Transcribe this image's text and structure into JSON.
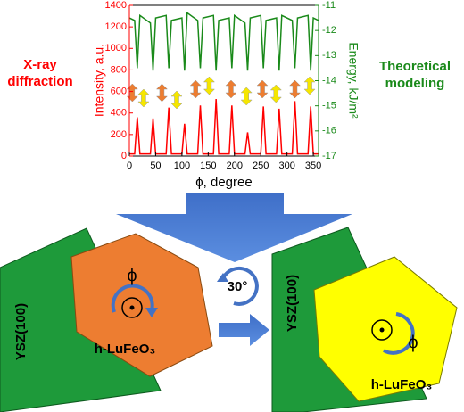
{
  "chart_data": {
    "type": "line",
    "x_label": "ϕ, degree",
    "y_label": "Intensity, a.u.",
    "y2_label": "Energy, kJ/m²",
    "left_annotation": [
      "X-ray",
      "diffraction"
    ],
    "right_annotation": [
      "Theoretical",
      "modeling"
    ],
    "x": [
      0,
      10,
      15,
      20,
      40,
      45,
      50,
      70,
      75,
      80,
      100,
      105,
      110,
      130,
      135,
      140,
      160,
      165,
      170,
      190,
      195,
      200,
      220,
      225,
      230,
      250,
      255,
      260,
      280,
      285,
      290,
      310,
      315,
      320,
      340,
      345,
      350,
      360
    ],
    "xlim": [
      0,
      360
    ],
    "xticks": [
      0,
      50,
      100,
      150,
      200,
      250,
      300,
      350
    ],
    "ylim": [
      0,
      1400
    ],
    "yticks": [
      0,
      200,
      400,
      600,
      800,
      1000,
      1200,
      1400
    ],
    "y2lim": [
      -17,
      -11
    ],
    "y2ticks": [
      -17,
      -16,
      -15,
      -14,
      -13,
      -12,
      -11
    ],
    "series": [
      {
        "color": "#ff0000",
        "values": [
          20,
          20,
          360,
          20,
          20,
          350,
          20,
          20,
          450,
          20,
          20,
          300,
          20,
          20,
          470,
          20,
          20,
          530,
          20,
          20,
          470,
          20,
          20,
          220,
          20,
          20,
          460,
          20,
          20,
          440,
          20,
          20,
          510,
          20,
          20,
          460,
          20,
          20
        ]
      },
      {
        "color": "#1a8a1a",
        "axis": "y2",
        "values": [
          -11.5,
          -11.6,
          -13.5,
          -11.4,
          -11.7,
          -13.6,
          -11.5,
          -11.4,
          -13.5,
          -11.6,
          -11.5,
          -13.6,
          -11.3,
          -11.6,
          -13.5,
          -11.5,
          -11.4,
          -13.6,
          -11.6,
          -11.5,
          -13.5,
          -11.4,
          -11.7,
          -13.6,
          -11.5,
          -11.4,
          -13.5,
          -11.6,
          -11.5,
          -13.6,
          -11.4,
          -11.6,
          -13.5,
          -11.5,
          -11.4,
          -13.6,
          -11.5,
          -11.6
        ]
      }
    ]
  },
  "diagram": {
    "substrate": [
      "YSZ(100)",
      "YSZ(100)"
    ],
    "film": [
      "h-LuFeO₃",
      "h-LuFeO₃"
    ],
    "angle": [
      "ϕ",
      "ϕ"
    ],
    "rotation": "30°"
  }
}
